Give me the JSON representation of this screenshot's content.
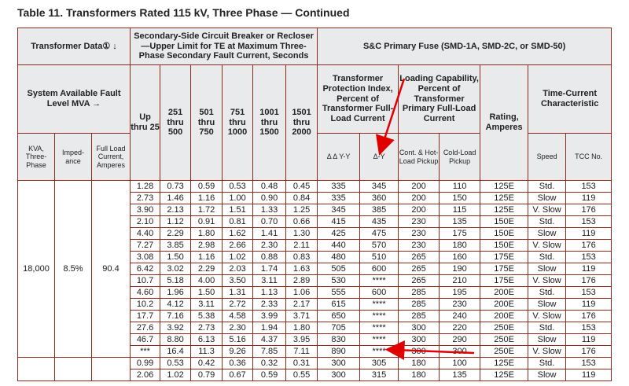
{
  "title": "Table 11. Transformers Rated 115 kV, Three Phase — Continued",
  "headers": {
    "transformer_data": "Transformer Data① ↓",
    "secondary_group": "Secondary-Side Circuit Breaker or Recloser —Upper Limit for TE at Maximum Three-Phase Secondary Fault Current, Seconds",
    "fuse_group": "S&C Primary Fuse (SMD-1A, SMD-2C, or SMD-50)",
    "system_fault": "System Available Fault Level MVA →",
    "kva": "KVA, Three-Phase",
    "impedance": "Imped-ance",
    "full_load": "Full Load Current, Amperes",
    "mva_cols": [
      "Up thru 25",
      "251 thru 500",
      "501 thru 750",
      "751 thru 1000",
      "1001 thru 1500",
      "1501 thru 2000"
    ],
    "protection_index": "Transformer Protection Index, Percent of Transformer Full-Load Current",
    "dd_yy": "Δ Δ Y-Y",
    "d_y": "Δ-Y",
    "loading_capability": "Loading Capability, Percent of Transformer Primary Full-Load Current",
    "cont_hot": "Cont. & Hot-Load Pickup",
    "cold_load": "Cold-Load Pickup",
    "rating": "Rating, Amperes",
    "tcc_group": "Time-Current Characteristic",
    "speed": "Speed",
    "tcc_no": "TCC No."
  },
  "group": {
    "kva": "18,000",
    "impedance": "8.5%",
    "full_load": "90.4"
  },
  "rows": [
    [
      "1.28",
      "0.73",
      "0.59",
      "0.53",
      "0.48",
      "0.45",
      "335",
      "345",
      "200",
      "110",
      "125E",
      "Std.",
      "153"
    ],
    [
      "2.73",
      "1.46",
      "1.16",
      "1.00",
      "0.90",
      "0.84",
      "335",
      "360",
      "200",
      "150",
      "125E",
      "Slow",
      "119"
    ],
    [
      "3.90",
      "2.13",
      "1.72",
      "1.51",
      "1.33",
      "1.25",
      "345",
      "385",
      "200",
      "115",
      "125E",
      "V. Slow",
      "176"
    ],
    [
      "2.10",
      "1.12",
      "0.91",
      "0.81",
      "0.70",
      "0.66",
      "415",
      "435",
      "230",
      "135",
      "150E",
      "Std.",
      "153"
    ],
    [
      "4.40",
      "2.29",
      "1.80",
      "1.62",
      "1.41",
      "1.30",
      "425",
      "475",
      "230",
      "175",
      "150E",
      "Slow",
      "119"
    ],
    [
      "7.27",
      "3.85",
      "2.98",
      "2.66",
      "2.30",
      "2.11",
      "440",
      "570",
      "230",
      "180",
      "150E",
      "V. Slow",
      "176"
    ],
    [
      "3.08",
      "1.50",
      "1.16",
      "1.02",
      "0.88",
      "0.83",
      "480",
      "510",
      "265",
      "160",
      "175E",
      "Std.",
      "153"
    ],
    [
      "6.42",
      "3.02",
      "2.29",
      "2.03",
      "1.74",
      "1.63",
      "505",
      "600",
      "265",
      "190",
      "175E",
      "Slow",
      "119"
    ],
    [
      "10.7",
      "5.18",
      "4.00",
      "3.50",
      "3.11",
      "2.89",
      "530",
      "****",
      "265",
      "210",
      "175E",
      "V. Slow",
      "176"
    ],
    [
      "4.60",
      "1.96",
      "1.50",
      "1.31",
      "1.13",
      "1.06",
      "555",
      "600",
      "285",
      "195",
      "200E",
      "Std.",
      "153"
    ],
    [
      "10.2",
      "4.12",
      "3.11",
      "2.72",
      "2.33",
      "2.17",
      "615",
      "****",
      "285",
      "230",
      "200E",
      "Slow",
      "119"
    ],
    [
      "17.7",
      "7.16",
      "5.38",
      "4.58",
      "3.99",
      "3.71",
      "650",
      "****",
      "285",
      "240",
      "200E",
      "V. Slow",
      "176"
    ],
    [
      "27.6",
      "3.92",
      "2.73",
      "2.30",
      "1.94",
      "1.80",
      "705",
      "****",
      "300",
      "220",
      "250E",
      "Std.",
      "153"
    ],
    [
      "46.7",
      "8.80",
      "6.13",
      "5.16",
      "4.37",
      "3.95",
      "830",
      "****",
      "300",
      "290",
      "250E",
      "Slow",
      "119"
    ],
    [
      "***",
      "16.4",
      "11.3",
      "9.26",
      "7.85",
      "7.11",
      "890",
      "****",
      "300",
      "300",
      "250E",
      "V. Slow",
      "176"
    ]
  ],
  "rows2": [
    [
      "0.99",
      "0.53",
      "0.42",
      "0.36",
      "0.32",
      "0.31",
      "300",
      "305",
      "180",
      "100",
      "125E",
      "Std.",
      "153"
    ],
    [
      "2.06",
      "1.02",
      "0.79",
      "0.67",
      "0.59",
      "0.55",
      "300",
      "315",
      "180",
      "135",
      "125E",
      "Slow",
      "119"
    ]
  ],
  "colors": {
    "border": "#8c2a1b",
    "header_bg": "#e9eaec",
    "annotation_arrow": "#e00000"
  }
}
